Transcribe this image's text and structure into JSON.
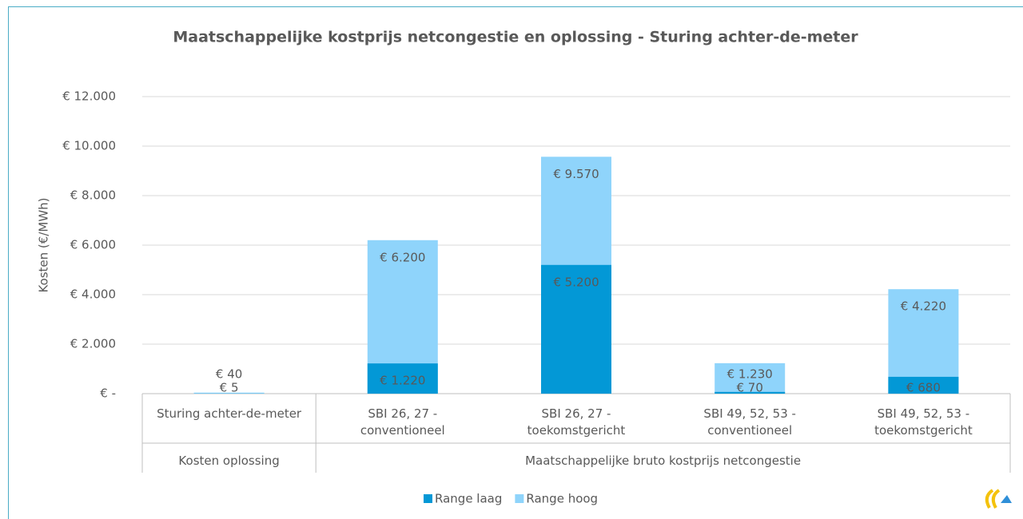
{
  "chart_data": {
    "type": "bar",
    "title": "Maatschappelijke kostprijs netcongestie en oplossing - Sturing achter-de-meter",
    "y_label": "Kosten (€/MWh)",
    "categories": [
      "Sturing achter-de-meter",
      "SBI 26, 27 - conventioneel",
      "SBI 26, 27 - toekomstgericht",
      "SBI 49, 52, 53 - conventioneel",
      "SBI 49, 52, 53 - toekomstgericht"
    ],
    "groups": [
      {
        "name": "Kosten oplossing",
        "span": 1
      },
      {
        "name": "Maatschappelijke bruto kostprijs netcongestie",
        "span": 4
      }
    ],
    "series": [
      {
        "name": "Range laag",
        "color": "#0398d6",
        "values": [
          5,
          1220,
          5200,
          70,
          680
        ],
        "value_labels": [
          "€ 5",
          "€ 1.220",
          "€ 5.200",
          "€ 70",
          "€ 680"
        ]
      },
      {
        "name": "Range hoog",
        "color": "#8fd4fb",
        "values": [
          40,
          6200,
          9570,
          1230,
          4220
        ],
        "value_labels": [
          "€ 40",
          "€ 6.200",
          "€ 9.570",
          "€ 1.230",
          "€ 4.220"
        ]
      }
    ],
    "ylim": [
      0,
      12000
    ],
    "yticks": [
      {
        "value": 0,
        "label": "€ -"
      },
      {
        "value": 2000,
        "label": "€ 2.000"
      },
      {
        "value": 4000,
        "label": "€ 4.000"
      },
      {
        "value": 6000,
        "label": "€ 6.000"
      },
      {
        "value": 8000,
        "label": "€ 8.000"
      },
      {
        "value": 10000,
        "label": "€ 10.000"
      },
      {
        "value": 12000,
        "label": "€ 12.000"
      }
    ],
    "grid": true,
    "legend": "bottom"
  }
}
